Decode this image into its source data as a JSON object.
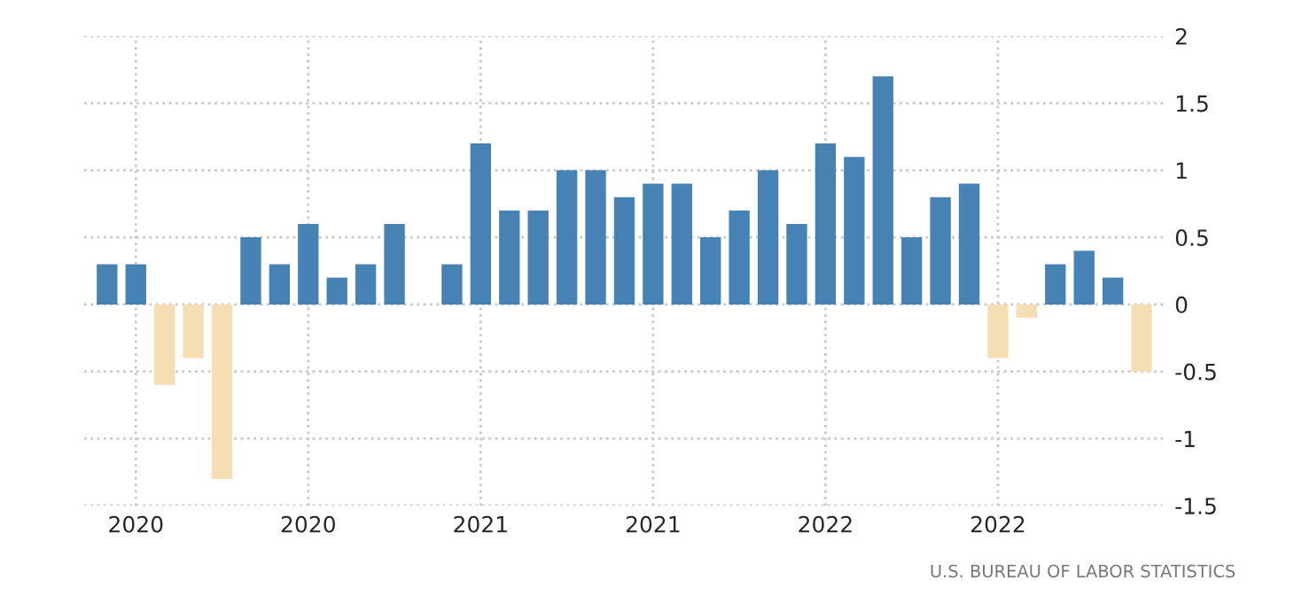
{
  "chart_data": {
    "type": "bar",
    "categories": [
      null,
      "2020",
      null,
      null,
      null,
      null,
      null,
      "2020",
      null,
      null,
      null,
      null,
      null,
      "2021",
      null,
      null,
      null,
      null,
      null,
      "2021",
      null,
      null,
      null,
      null,
      null,
      "2022",
      null,
      null,
      null,
      null,
      null,
      "2022",
      null,
      null,
      null,
      null,
      null
    ],
    "values": [
      0.3,
      0.3,
      -0.6,
      -0.4,
      -1.3,
      0.5,
      0.3,
      0.6,
      0.2,
      0.3,
      0.6,
      0,
      0.3,
      1.2,
      0.7,
      0.7,
      1.0,
      1.0,
      0.8,
      0.9,
      0.9,
      0.5,
      0.7,
      1.0,
      0.6,
      1.2,
      1.1,
      1.7,
      0.5,
      0.8,
      0.9,
      -0.4,
      -0.1,
      0.3,
      0.4,
      0.2,
      -0.5
    ],
    "colors": [
      "#4682b4",
      "#4682b4",
      "#f5deb3",
      "#f5deb3",
      "#f5deb3",
      "#4682b4",
      "#4682b4",
      "#4682b4",
      "#4682b4",
      "#4682b4",
      "#4682b4",
      "#4682b4",
      "#4682b4",
      "#4682b4",
      "#4682b4",
      "#4682b4",
      "#4682b4",
      "#4682b4",
      "#4682b4",
      "#4682b4",
      "#4682b4",
      "#4682b4",
      "#4682b4",
      "#4682b4",
      "#4682b4",
      "#4682b4",
      "#4682b4",
      "#4682b4",
      "#4682b4",
      "#4682b4",
      "#4682b4",
      "#f5deb3",
      "#f5deb3",
      "#4682b4",
      "#4682b4",
      "#4682b4",
      "#f5deb3"
    ],
    "ylim": [
      -1.5,
      2
    ],
    "yticks": [
      -1.5,
      -1,
      -0.5,
      0,
      0.5,
      1,
      1.5,
      2
    ],
    "grid": true,
    "annotations": [
      "U.S. BUREAU OF LABOR STATISTICS"
    ]
  }
}
